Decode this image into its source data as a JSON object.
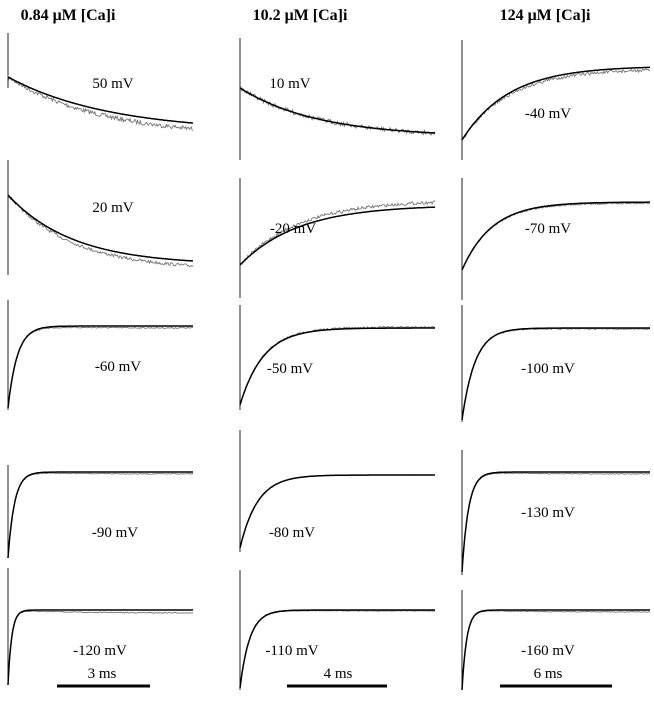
{
  "chart_data": {
    "type": "line",
    "columns": [
      {
        "title": "0.84 μM [Ca]i",
        "scale_bar": "3 ms",
        "traces": [
          {
            "label": "50 mV",
            "kind": "decay"
          },
          {
            "label": "20 mV",
            "kind": "decay"
          },
          {
            "label": "-60 mV",
            "kind": "rise"
          },
          {
            "label": "-90 mV",
            "kind": "rise"
          },
          {
            "label": "-120 mV",
            "kind": "rise"
          }
        ]
      },
      {
        "title": "10.2 μM [Ca]i",
        "scale_bar": "4 ms",
        "traces": [
          {
            "label": "10 mV",
            "kind": "decay"
          },
          {
            "label": "-20 mV",
            "kind": "rise"
          },
          {
            "label": "-50 mV",
            "kind": "rise"
          },
          {
            "label": "-80 mV",
            "kind": "rise"
          },
          {
            "label": "-110 mV",
            "kind": "rise"
          }
        ]
      },
      {
        "title": "124 μM [Ca]i",
        "scale_bar": "6 ms",
        "traces": [
          {
            "label": "-40 mV",
            "kind": "rise"
          },
          {
            "label": "-70 mV",
            "kind": "rise"
          },
          {
            "label": "-100 mV",
            "kind": "rise"
          },
          {
            "label": "-130 mV",
            "kind": "rise"
          },
          {
            "label": "-160 mV",
            "kind": "rise"
          }
        ]
      }
    ],
    "series": [
      {
        "role": "recorded current",
        "color": "#777777"
      },
      {
        "role": "exponential fit",
        "color": "#000000"
      }
    ]
  }
}
